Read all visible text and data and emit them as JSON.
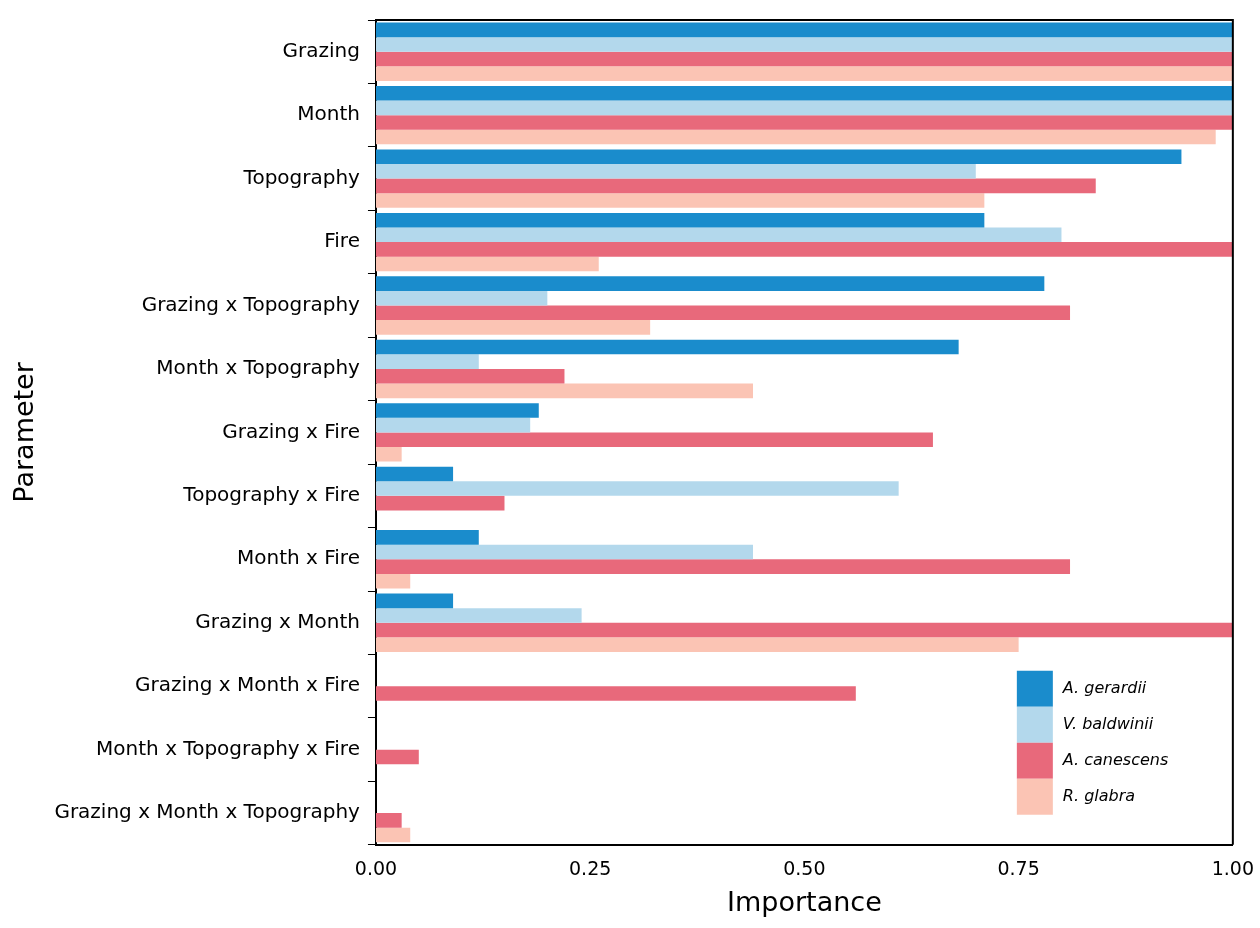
{
  "chart_data": {
    "type": "bar",
    "orientation": "horizontal",
    "xlabel": "Importance",
    "ylabel": "Parameter",
    "categories": [
      "Grazing",
      "Month",
      "Topography",
      "Fire",
      "Grazing x Topography",
      "Month x Topography",
      "Grazing x Fire",
      "Topography x Fire",
      "Month x Fire",
      "Grazing x Month",
      "Grazing x Month x Fire",
      "Month x Topography x Fire",
      "Grazing x Month x Topography"
    ],
    "series": [
      {
        "name": "A. gerardii",
        "color": "#1a8ccc",
        "values": [
          1,
          1,
          0.94,
          0.71,
          0.78,
          0.68,
          0.19,
          0.09,
          0.12,
          0.09,
          null,
          null,
          null
        ]
      },
      {
        "name": "V. baldwinii",
        "color": "#b3d8ec",
        "values": [
          1,
          1,
          0.7,
          0.8,
          0.2,
          0.12,
          0.18,
          0.61,
          0.44,
          0.24,
          null,
          null,
          null
        ]
      },
      {
        "name": "A. canescens",
        "color": "#e8697b",
        "values": [
          1,
          1,
          0.84,
          1,
          0.81,
          0.22,
          0.65,
          0.15,
          0.81,
          1,
          0.56,
          0.05,
          0.03
        ]
      },
      {
        "name": "R. glabra",
        "color": "#fbc4b4",
        "values": [
          1,
          0.98,
          0.71,
          0.26,
          0.32,
          0.44,
          0.03,
          null,
          0.04,
          0.75,
          null,
          null,
          0.04
        ]
      }
    ],
    "xlim": [
      0,
      1
    ],
    "xticks": [
      {
        "value": 0,
        "label": "0.00"
      },
      {
        "value": 0.25,
        "label": "0.25"
      },
      {
        "value": 0.5,
        "label": "0.50"
      },
      {
        "value": 0.75,
        "label": "0.75"
      },
      {
        "value": 1,
        "label": "1.00"
      }
    ],
    "grid": false,
    "legend": "bottom right"
  }
}
